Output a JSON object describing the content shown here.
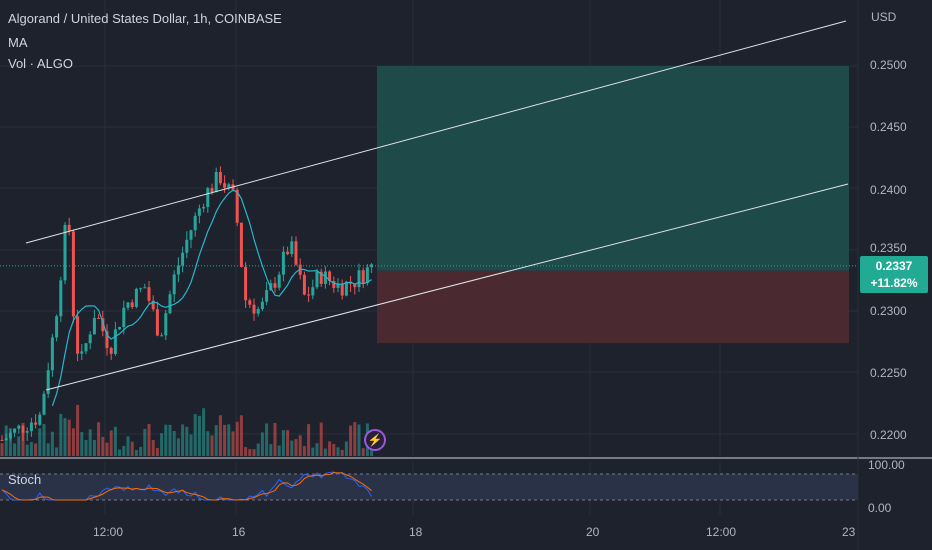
{
  "legend": {
    "title": "Algorand / United States Dollar, 1h, COINBASE",
    "ma": "MA",
    "vol": "Vol · ALGO"
  },
  "currency": "USD",
  "price_scale": [
    "0.2500",
    "0.2450",
    "0.2400",
    "0.2350",
    "0.2300",
    "0.2250",
    "0.2200"
  ],
  "stoch_scale": [
    "100.00",
    "0.00"
  ],
  "stoch_label": "Stoch",
  "time_labels": [
    "12:00",
    "16",
    "18",
    "20",
    "12:00",
    "23"
  ],
  "current_price": {
    "value": "0.2337",
    "change": "+11.82%"
  },
  "colors": {
    "background": "#1e222d",
    "up": "#26a69a",
    "down": "#ef5350",
    "ma_line": "#22b8cf",
    "profit_zone": "#1f4a4a",
    "loss_zone": "#4a2a30",
    "stoch_k": "#2962ff",
    "stoch_d": "#ff6d00"
  },
  "chart_data": {
    "type": "candlestick",
    "price_range": [
      0.2175,
      0.2535
    ],
    "channel": {
      "upper": [
        [
          0.2357,
          0.2531
        ]
      ],
      "lower": [
        [
          0.2238,
          0.2404
        ]
      ]
    },
    "position": {
      "entry": 0.2333,
      "target": 0.25,
      "stop": 0.2274
    },
    "current_price": 0.2337
  },
  "icons": {
    "alert": "lightning-icon"
  }
}
